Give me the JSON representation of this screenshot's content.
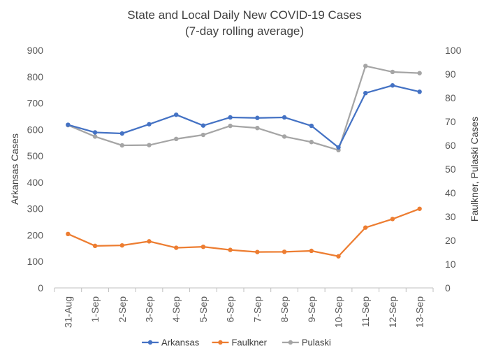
{
  "chart_data": {
    "type": "line",
    "title": "State and Local Daily New COVID-19 Cases",
    "subtitle": "(7-day rolling average)",
    "categories": [
      "31-Aug",
      "1-Sep",
      "2-Sep",
      "3-Sep",
      "4-Sep",
      "5-Sep",
      "6-Sep",
      "7-Sep",
      "8-Sep",
      "9-Sep",
      "10-Sep",
      "11-Sep",
      "12-Sep",
      "13-Sep"
    ],
    "y_left": {
      "label": "Arkansas Cases",
      "min": 0,
      "max": 900,
      "step": 100,
      "ticks": [
        "0",
        "100",
        "200",
        "300",
        "400",
        "500",
        "600",
        "700",
        "800",
        "900"
      ]
    },
    "y_right": {
      "label": "Faulkner, Pulaski Cases",
      "min": 0,
      "max": 100,
      "step": 10,
      "ticks": [
        "0",
        "10",
        "20",
        "30",
        "40",
        "50",
        "60",
        "70",
        "80",
        "90",
        "100"
      ]
    },
    "grid": false,
    "legend_position": "bottom",
    "series": [
      {
        "name": "Arkansas",
        "axis": "left",
        "color": "#4472C4",
        "values": [
          618,
          589,
          585,
          620,
          656,
          615,
          646,
          644,
          646,
          614,
          532,
          738,
          767,
          743
        ]
      },
      {
        "name": "Faulkner",
        "axis": "right",
        "color": "#ED7D31",
        "values": [
          22.7,
          17.7,
          17.9,
          19.6,
          16.9,
          17.3,
          16.0,
          15.1,
          15.2,
          15.6,
          13.3,
          25.4,
          29.0,
          33.3
        ]
      },
      {
        "name": "Pulaski",
        "axis": "right",
        "color": "#A5A5A5",
        "values": [
          68.5,
          63.7,
          60.0,
          60.1,
          62.7,
          64.4,
          68.2,
          67.3,
          63.7,
          61.4,
          58.0,
          93.4,
          90.9,
          90.4
        ]
      }
    ]
  }
}
